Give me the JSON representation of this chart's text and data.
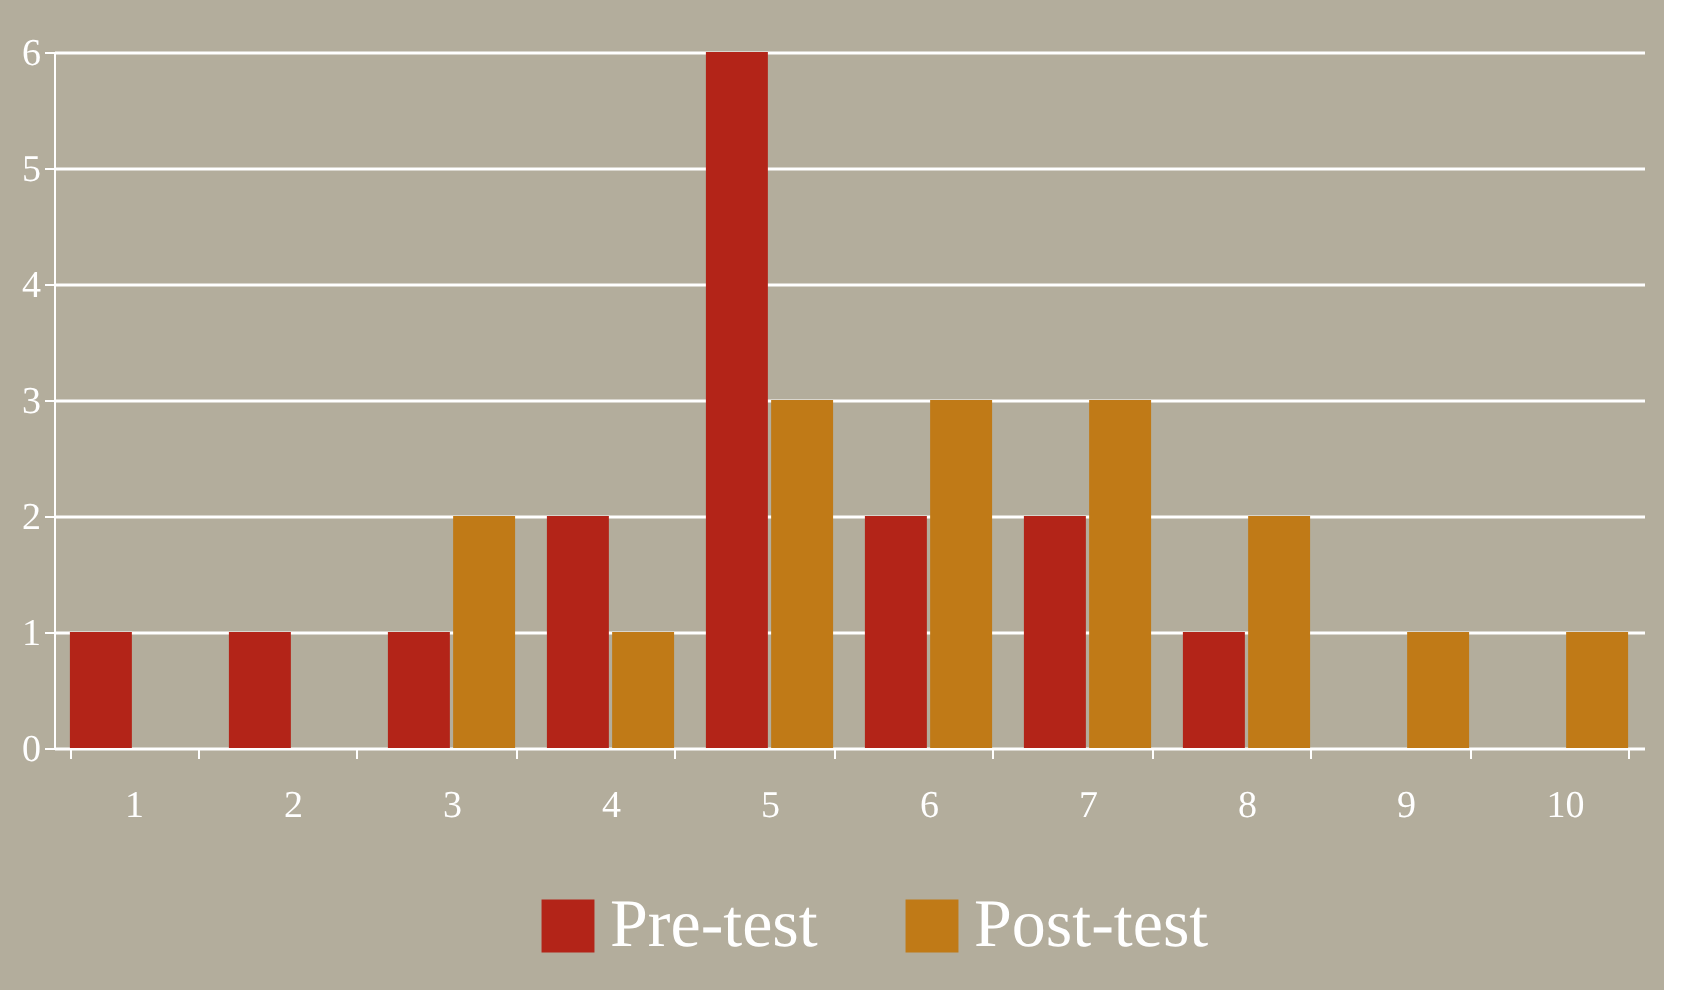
{
  "chart_data": {
    "type": "bar",
    "categories": [
      "1",
      "2",
      "3",
      "4",
      "5",
      "6",
      "7",
      "8",
      "9",
      "10"
    ],
    "series": [
      {
        "name": "Pre-test",
        "color": "#b32418",
        "values": [
          1,
          1,
          1,
          2,
          6,
          2,
          2,
          1,
          0,
          0
        ]
      },
      {
        "name": "Post-test",
        "color": "#c07a17",
        "values": [
          0,
          0,
          2,
          1,
          3,
          3,
          3,
          2,
          1,
          1
        ]
      }
    ],
    "ylim": [
      0,
      6
    ],
    "yticks": [
      0,
      1,
      2,
      3,
      4,
      5,
      6
    ],
    "grid": "y",
    "legend": "bottom"
  }
}
